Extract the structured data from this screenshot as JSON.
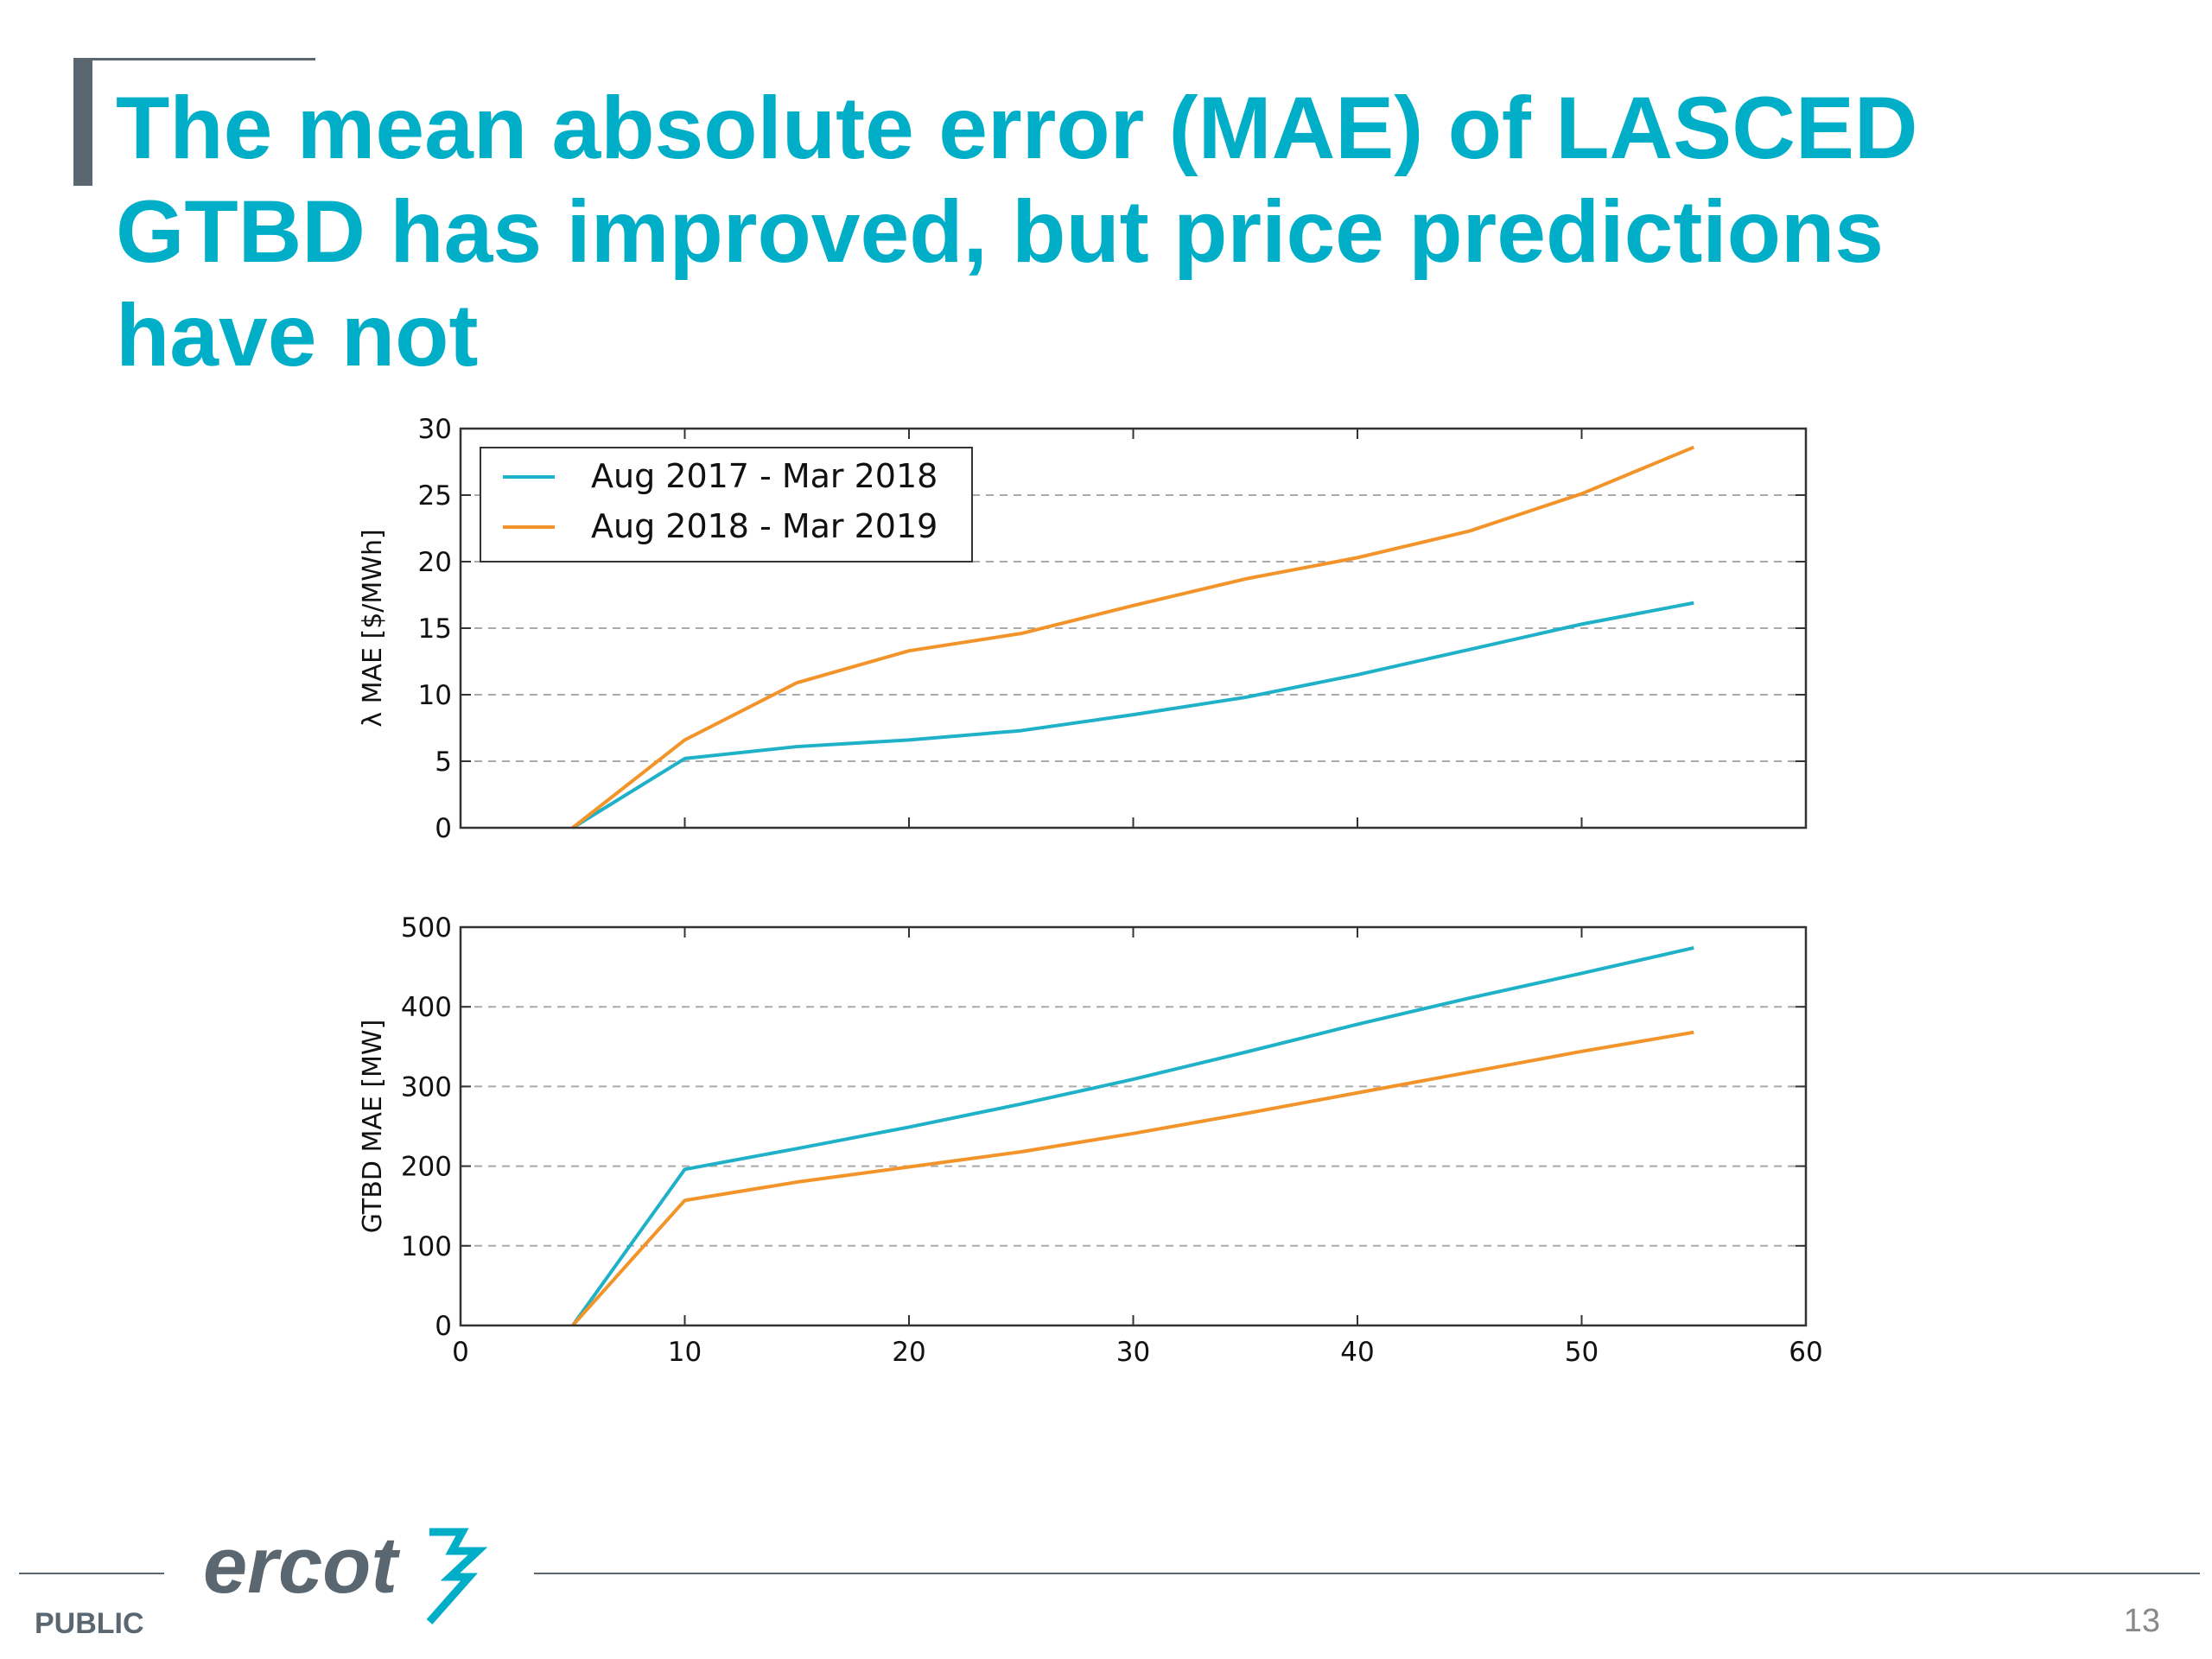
{
  "slide": {
    "title": "The mean absolute error (MAE) of LASCED GTBD has improved, but price predictions have not",
    "footer_label": "PUBLIC",
    "page_number": "13",
    "logo_text": "ercot"
  },
  "colors": {
    "title": "#00aec7",
    "series_2017": "#1fb1c7",
    "series_2018": "#f29429",
    "footer": "#5b6770"
  },
  "chart_data": [
    {
      "type": "line",
      "ylabel": "λ MAE [$/MWh]",
      "xlabel": "",
      "xlim": [
        0,
        60
      ],
      "ylim": [
        0,
        30
      ],
      "yticks": [
        "0",
        "5",
        "10",
        "15",
        "20",
        "25",
        "30"
      ],
      "grid": "horizontal dashed",
      "legend_position": "top-left",
      "x": [
        5,
        10,
        15,
        20,
        25,
        30,
        35,
        40,
        45,
        50,
        55
      ],
      "series": [
        {
          "name": "Aug 2017 - Mar 2018",
          "values": [
            0,
            5.2,
            6.1,
            6.6,
            7.3,
            8.5,
            9.8,
            11.5,
            13.4,
            15.3,
            16.9
          ]
        },
        {
          "name": "Aug 2018 - Mar 2019",
          "values": [
            0,
            6.6,
            10.9,
            13.3,
            14.6,
            16.7,
            18.7,
            20.3,
            22.3,
            25.1,
            28.6
          ]
        }
      ]
    },
    {
      "type": "line",
      "ylabel": "GTBD MAE [MW]",
      "xlabel": "",
      "xlim": [
        0,
        60
      ],
      "ylim": [
        0,
        500
      ],
      "xticks": [
        "0",
        "10",
        "20",
        "30",
        "40",
        "50",
        "60"
      ],
      "yticks": [
        "0",
        "100",
        "200",
        "300",
        "400",
        "500"
      ],
      "grid": "horizontal dashed",
      "x": [
        5,
        10,
        15,
        20,
        25,
        30,
        35,
        40,
        45,
        50,
        55
      ],
      "series": [
        {
          "name": "Aug 2017 - Mar 2018",
          "values": [
            0,
            196,
            222,
            249,
            278,
            309,
            343,
            378,
            411,
            442,
            474
          ]
        },
        {
          "name": "Aug 2018 - Mar 2019",
          "values": [
            0,
            157,
            180,
            199,
            218,
            241,
            266,
            292,
            318,
            344,
            368
          ]
        }
      ]
    }
  ]
}
